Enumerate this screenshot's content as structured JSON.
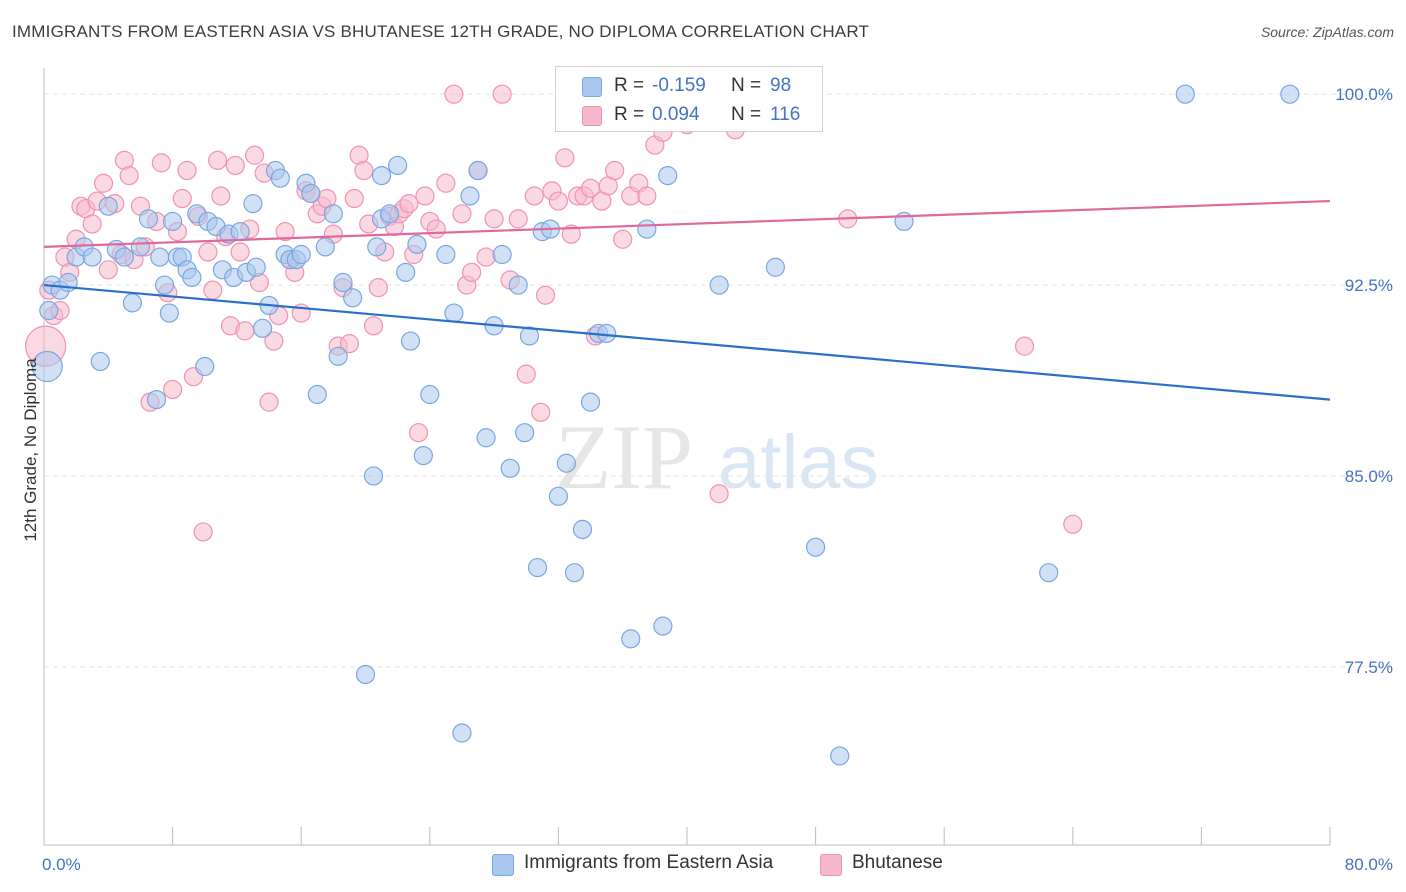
{
  "header": {
    "title": "IMMIGRANTS FROM EASTERN ASIA VS BHUTANESE 12TH GRADE, NO DIPLOMA CORRELATION CHART",
    "source": "Source: ZipAtlas.com"
  },
  "watermark": {
    "zip": "ZIP",
    "atlas": "atlas"
  },
  "legend_top": {
    "rows": [
      {
        "r_label": "R =",
        "r_value": "-0.159",
        "n_label": "N =",
        "n_value": "98"
      },
      {
        "r_label": "R =",
        "r_value": "0.094",
        "n_label": "N =",
        "n_value": "116"
      }
    ]
  },
  "legend_bottom": {
    "items": [
      "Immigrants from Eastern Asia",
      "Bhutanese"
    ]
  },
  "colors": {
    "blue_fill": "#aac8ef",
    "blue_stroke": "#7aa6e0",
    "blue_line": "#2a6fc9",
    "pink_fill": "#f6b9cc",
    "pink_stroke": "#ef93b1",
    "pink_line": "#e0689a",
    "tick_label": "#4472c4",
    "grid": "#e3e3e3"
  },
  "chart_data": {
    "type": "scatter",
    "title": "IMMIGRANTS FROM EASTERN ASIA VS BHUTANESE 12TH GRADE, NO DIPLOMA CORRELATION CHART",
    "xlabel": "",
    "ylabel": "12th Grade, No Diploma",
    "xlim": [
      0,
      80
    ],
    "ylim": [
      70.5,
      101.5
    ],
    "x_tick_labels": [
      "0.0%",
      "80.0%"
    ],
    "y_ticks": [
      77.5,
      85.0,
      92.5,
      100.0
    ],
    "y_tick_labels": [
      "77.5%",
      "85.0%",
      "92.5%",
      "100.0%"
    ],
    "grid": "horizontal dashed",
    "legend_position": "top-center",
    "series": [
      {
        "name": "Immigrants from Eastern Asia",
        "R": -0.159,
        "N": 98,
        "trend": {
          "x": [
            0,
            80
          ],
          "y": [
            92.5,
            88.0
          ]
        },
        "points": [
          [
            0.2,
            89.3
          ],
          [
            0.3,
            91.5
          ],
          [
            0.5,
            92.5
          ],
          [
            1.0,
            92.3
          ],
          [
            1.5,
            92.6
          ],
          [
            2.0,
            93.6
          ],
          [
            2.5,
            94.0
          ],
          [
            3.0,
            93.6
          ],
          [
            3.5,
            89.5
          ],
          [
            4.0,
            95.6
          ],
          [
            4.5,
            93.9
          ],
          [
            5.0,
            93.6
          ],
          [
            5.5,
            91.8
          ],
          [
            6.0,
            94.0
          ],
          [
            6.5,
            95.1
          ],
          [
            7.0,
            88.0
          ],
          [
            7.2,
            93.6
          ],
          [
            7.5,
            92.5
          ],
          [
            7.8,
            91.4
          ],
          [
            8.0,
            95.0
          ],
          [
            8.3,
            93.6
          ],
          [
            8.6,
            93.6
          ],
          [
            8.9,
            93.1
          ],
          [
            9.2,
            92.8
          ],
          [
            9.5,
            95.3
          ],
          [
            10.0,
            89.3
          ],
          [
            10.2,
            95.0
          ],
          [
            10.7,
            94.8
          ],
          [
            11.1,
            93.1
          ],
          [
            11.5,
            94.5
          ],
          [
            11.8,
            92.8
          ],
          [
            12.2,
            94.6
          ],
          [
            12.6,
            93.0
          ],
          [
            13.0,
            95.7
          ],
          [
            13.2,
            93.2
          ],
          [
            13.6,
            90.8
          ],
          [
            14.0,
            91.7
          ],
          [
            14.4,
            97.0
          ],
          [
            14.7,
            96.7
          ],
          [
            15.0,
            93.7
          ],
          [
            15.3,
            93.5
          ],
          [
            15.7,
            93.5
          ],
          [
            16.0,
            93.7
          ],
          [
            16.3,
            96.5
          ],
          [
            16.6,
            96.1
          ],
          [
            17.0,
            88.2
          ],
          [
            17.5,
            94.0
          ],
          [
            18.0,
            95.3
          ],
          [
            18.3,
            89.7
          ],
          [
            18.6,
            92.6
          ],
          [
            19.2,
            92.0
          ],
          [
            20.0,
            77.2
          ],
          [
            20.5,
            85.0
          ],
          [
            20.7,
            94.0
          ],
          [
            21.0,
            95.1
          ],
          [
            21.5,
            95.3
          ],
          [
            22.0,
            97.2
          ],
          [
            22.5,
            93.0
          ],
          [
            22.8,
            90.3
          ],
          [
            23.2,
            94.1
          ],
          [
            23.6,
            85.8
          ],
          [
            24.0,
            88.2
          ],
          [
            25.0,
            93.7
          ],
          [
            25.5,
            91.4
          ],
          [
            26.0,
            74.9
          ],
          [
            26.5,
            96.0
          ],
          [
            27.5,
            86.5
          ],
          [
            28.0,
            90.9
          ],
          [
            28.5,
            93.7
          ],
          [
            29.0,
            85.3
          ],
          [
            29.5,
            92.5
          ],
          [
            29.9,
            86.7
          ],
          [
            30.2,
            90.5
          ],
          [
            30.7,
            81.4
          ],
          [
            31.0,
            94.6
          ],
          [
            31.5,
            94.7
          ],
          [
            32.5,
            85.5
          ],
          [
            32.0,
            84.2
          ],
          [
            33.0,
            81.2
          ],
          [
            33.5,
            82.9
          ],
          [
            34.0,
            87.9
          ],
          [
            34.5,
            90.6
          ],
          [
            35.0,
            90.6
          ],
          [
            36.5,
            78.6
          ],
          [
            37.5,
            94.7
          ],
          [
            38.5,
            79.1
          ],
          [
            38.8,
            96.8
          ],
          [
            42.0,
            92.5
          ],
          [
            45.5,
            93.2
          ],
          [
            48.0,
            82.2
          ],
          [
            49.5,
            74.0
          ],
          [
            53.5,
            95.0
          ],
          [
            62.5,
            81.2
          ],
          [
            71.0,
            100.0
          ],
          [
            77.5,
            100.0
          ],
          [
            36.0,
            100.0
          ],
          [
            21.0,
            96.8
          ],
          [
            27.0,
            97.0
          ]
        ]
      },
      {
        "name": "Bhutanese",
        "R": 0.094,
        "N": 116,
        "trend": {
          "x": [
            0,
            80
          ],
          "y": [
            94.0,
            95.8
          ]
        },
        "points": [
          [
            0.1,
            90.1
          ],
          [
            0.3,
            92.3
          ],
          [
            0.6,
            91.3
          ],
          [
            1.0,
            91.5
          ],
          [
            1.3,
            93.6
          ],
          [
            1.6,
            93.0
          ],
          [
            2.0,
            94.3
          ],
          [
            2.3,
            95.6
          ],
          [
            2.6,
            95.5
          ],
          [
            3.0,
            94.9
          ],
          [
            3.3,
            95.8
          ],
          [
            3.7,
            96.5
          ],
          [
            4.0,
            93.1
          ],
          [
            4.4,
            95.7
          ],
          [
            4.8,
            93.7
          ],
          [
            5.0,
            97.4
          ],
          [
            5.3,
            96.8
          ],
          [
            5.6,
            93.5
          ],
          [
            6.0,
            95.6
          ],
          [
            6.3,
            94.0
          ],
          [
            6.6,
            87.9
          ],
          [
            7.0,
            95.0
          ],
          [
            7.3,
            97.3
          ],
          [
            7.7,
            92.2
          ],
          [
            8.0,
            88.4
          ],
          [
            8.3,
            94.6
          ],
          [
            8.6,
            95.9
          ],
          [
            8.9,
            97.0
          ],
          [
            9.3,
            88.9
          ],
          [
            9.6,
            95.2
          ],
          [
            9.9,
            82.8
          ],
          [
            10.2,
            93.8
          ],
          [
            10.5,
            92.3
          ],
          [
            10.8,
            97.4
          ],
          [
            11.0,
            96.0
          ],
          [
            11.3,
            94.4
          ],
          [
            11.6,
            90.9
          ],
          [
            11.9,
            97.2
          ],
          [
            12.2,
            93.8
          ],
          [
            12.5,
            90.7
          ],
          [
            12.8,
            94.7
          ],
          [
            13.1,
            97.6
          ],
          [
            13.4,
            92.6
          ],
          [
            13.7,
            96.9
          ],
          [
            14.0,
            87.9
          ],
          [
            14.3,
            90.3
          ],
          [
            14.6,
            91.3
          ],
          [
            15.0,
            94.6
          ],
          [
            15.3,
            93.5
          ],
          [
            15.6,
            93.0
          ],
          [
            16.0,
            91.4
          ],
          [
            16.3,
            96.2
          ],
          [
            16.6,
            96.1
          ],
          [
            17.0,
            95.3
          ],
          [
            17.3,
            95.6
          ],
          [
            17.6,
            95.9
          ],
          [
            18.0,
            94.5
          ],
          [
            18.3,
            90.1
          ],
          [
            18.6,
            92.4
          ],
          [
            19.0,
            90.2
          ],
          [
            19.3,
            95.9
          ],
          [
            19.6,
            97.6
          ],
          [
            19.9,
            97.0
          ],
          [
            20.2,
            94.9
          ],
          [
            20.5,
            90.9
          ],
          [
            20.8,
            92.4
          ],
          [
            21.2,
            93.8
          ],
          [
            21.5,
            95.2
          ],
          [
            21.8,
            94.8
          ],
          [
            22.1,
            95.3
          ],
          [
            22.4,
            95.5
          ],
          [
            22.7,
            95.7
          ],
          [
            23.0,
            93.7
          ],
          [
            23.3,
            86.7
          ],
          [
            23.7,
            96.0
          ],
          [
            24.0,
            95.0
          ],
          [
            24.4,
            94.7
          ],
          [
            25.0,
            96.5
          ],
          [
            25.5,
            100.0
          ],
          [
            26.0,
            95.3
          ],
          [
            26.3,
            92.5
          ],
          [
            26.6,
            93.0
          ],
          [
            27.0,
            97.0
          ],
          [
            27.5,
            93.6
          ],
          [
            28.0,
            95.1
          ],
          [
            28.5,
            100.0
          ],
          [
            29.0,
            92.7
          ],
          [
            29.5,
            95.1
          ],
          [
            30.0,
            89.0
          ],
          [
            30.5,
            96.0
          ],
          [
            30.9,
            87.5
          ],
          [
            31.2,
            92.1
          ],
          [
            31.6,
            96.2
          ],
          [
            32.0,
            95.8
          ],
          [
            32.4,
            97.5
          ],
          [
            32.8,
            94.5
          ],
          [
            33.2,
            96.0
          ],
          [
            33.6,
            96.0
          ],
          [
            34.0,
            96.3
          ],
          [
            34.3,
            90.5
          ],
          [
            34.7,
            95.8
          ],
          [
            35.1,
            96.4
          ],
          [
            35.5,
            97.0
          ],
          [
            36.0,
            94.3
          ],
          [
            36.5,
            96.0
          ],
          [
            37.0,
            96.5
          ],
          [
            37.5,
            96.0
          ],
          [
            38.0,
            98.0
          ],
          [
            38.5,
            98.5
          ],
          [
            40.0,
            98.8
          ],
          [
            42.0,
            84.3
          ],
          [
            43.0,
            98.6
          ],
          [
            50.0,
            95.1
          ],
          [
            61.0,
            90.1
          ],
          [
            64.0,
            83.1
          ]
        ]
      }
    ]
  }
}
